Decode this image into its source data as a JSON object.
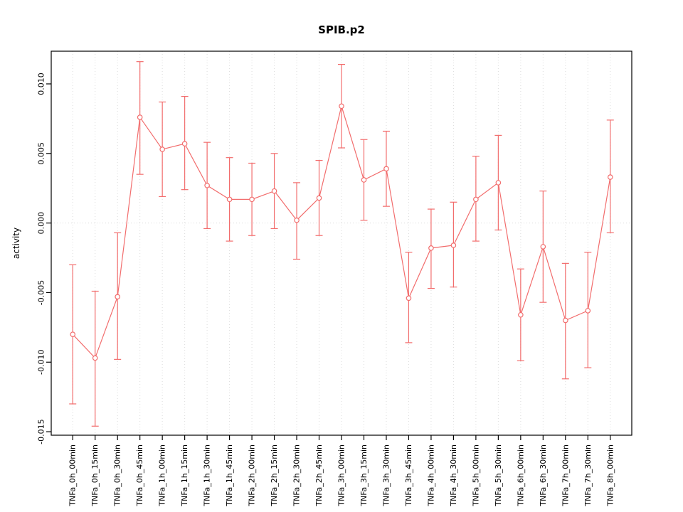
{
  "chart_data": {
    "type": "line",
    "title": "SPIB.p2",
    "xlabel": "",
    "ylabel": "activity",
    "ylim": [
      -0.01525,
      0.01235
    ],
    "yticks": [
      -0.015,
      -0.01,
      -0.005,
      0.0,
      0.005,
      0.01
    ],
    "ytick_labels": [
      "-0.015",
      "-0.010",
      "-0.005",
      "0.000",
      "0.005",
      "0.010"
    ],
    "grid": "vertical dotted line at each category; horizontal dotted line at y=0",
    "legend": "none",
    "point_style": "open-circle",
    "series_color": "#f26d6d",
    "grid_color": "#dcdcdc",
    "box_color": "#000000",
    "categories": [
      "TNFa_0h_00min",
      "TNFa_0h_15min",
      "TNFa_0h_30min",
      "TNFa_0h_45min",
      "TNFa_1h_00min",
      "TNFa_1h_15min",
      "TNFa_1h_30min",
      "TNFa_1h_45min",
      "TNFa_2h_00min",
      "TNFa_2h_15min",
      "TNFa_2h_30min",
      "TNFa_2h_45min",
      "TNFa_3h_00min",
      "TNFa_3h_15min",
      "TNFa_3h_30min",
      "TNFa_3h_45min",
      "TNFa_4h_00min",
      "TNFa_4h_30min",
      "TNFa_5h_00min",
      "TNFa_5h_30min",
      "TNFa_6h_00min",
      "TNFa_6h_30min",
      "TNFa_7h_00min",
      "TNFa_7h_30min",
      "TNFa_8h_00min"
    ],
    "values": [
      -0.008,
      -0.0097,
      -0.0053,
      0.0076,
      0.0053,
      0.0057,
      0.0027,
      0.0017,
      0.0017,
      0.0023,
      0.0002,
      0.0018,
      0.0084,
      0.0031,
      0.0039,
      -0.0054,
      -0.0018,
      -0.0016,
      0.0017,
      0.0029,
      -0.0066,
      -0.0017,
      -0.007,
      -0.0063,
      0.0033
    ],
    "error_low": [
      -0.013,
      -0.0146,
      -0.0098,
      0.0035,
      0.0019,
      0.0024,
      -0.0004,
      -0.0013,
      -0.0009,
      -0.0004,
      -0.0026,
      -0.0009,
      0.0054,
      0.0002,
      0.0012,
      -0.0086,
      -0.0047,
      -0.0046,
      -0.0013,
      -0.0005,
      -0.0099,
      -0.0057,
      -0.0112,
      -0.0104,
      -0.0007
    ],
    "error_high": [
      -0.003,
      -0.0049,
      -0.0007,
      0.0116,
      0.0087,
      0.0091,
      0.0058,
      0.0047,
      0.0043,
      0.005,
      0.0029,
      0.0045,
      0.0114,
      0.006,
      0.0066,
      -0.0021,
      0.001,
      0.0015,
      0.0048,
      0.0063,
      -0.0033,
      0.0023,
      -0.0029,
      -0.0021,
      0.0074
    ]
  }
}
